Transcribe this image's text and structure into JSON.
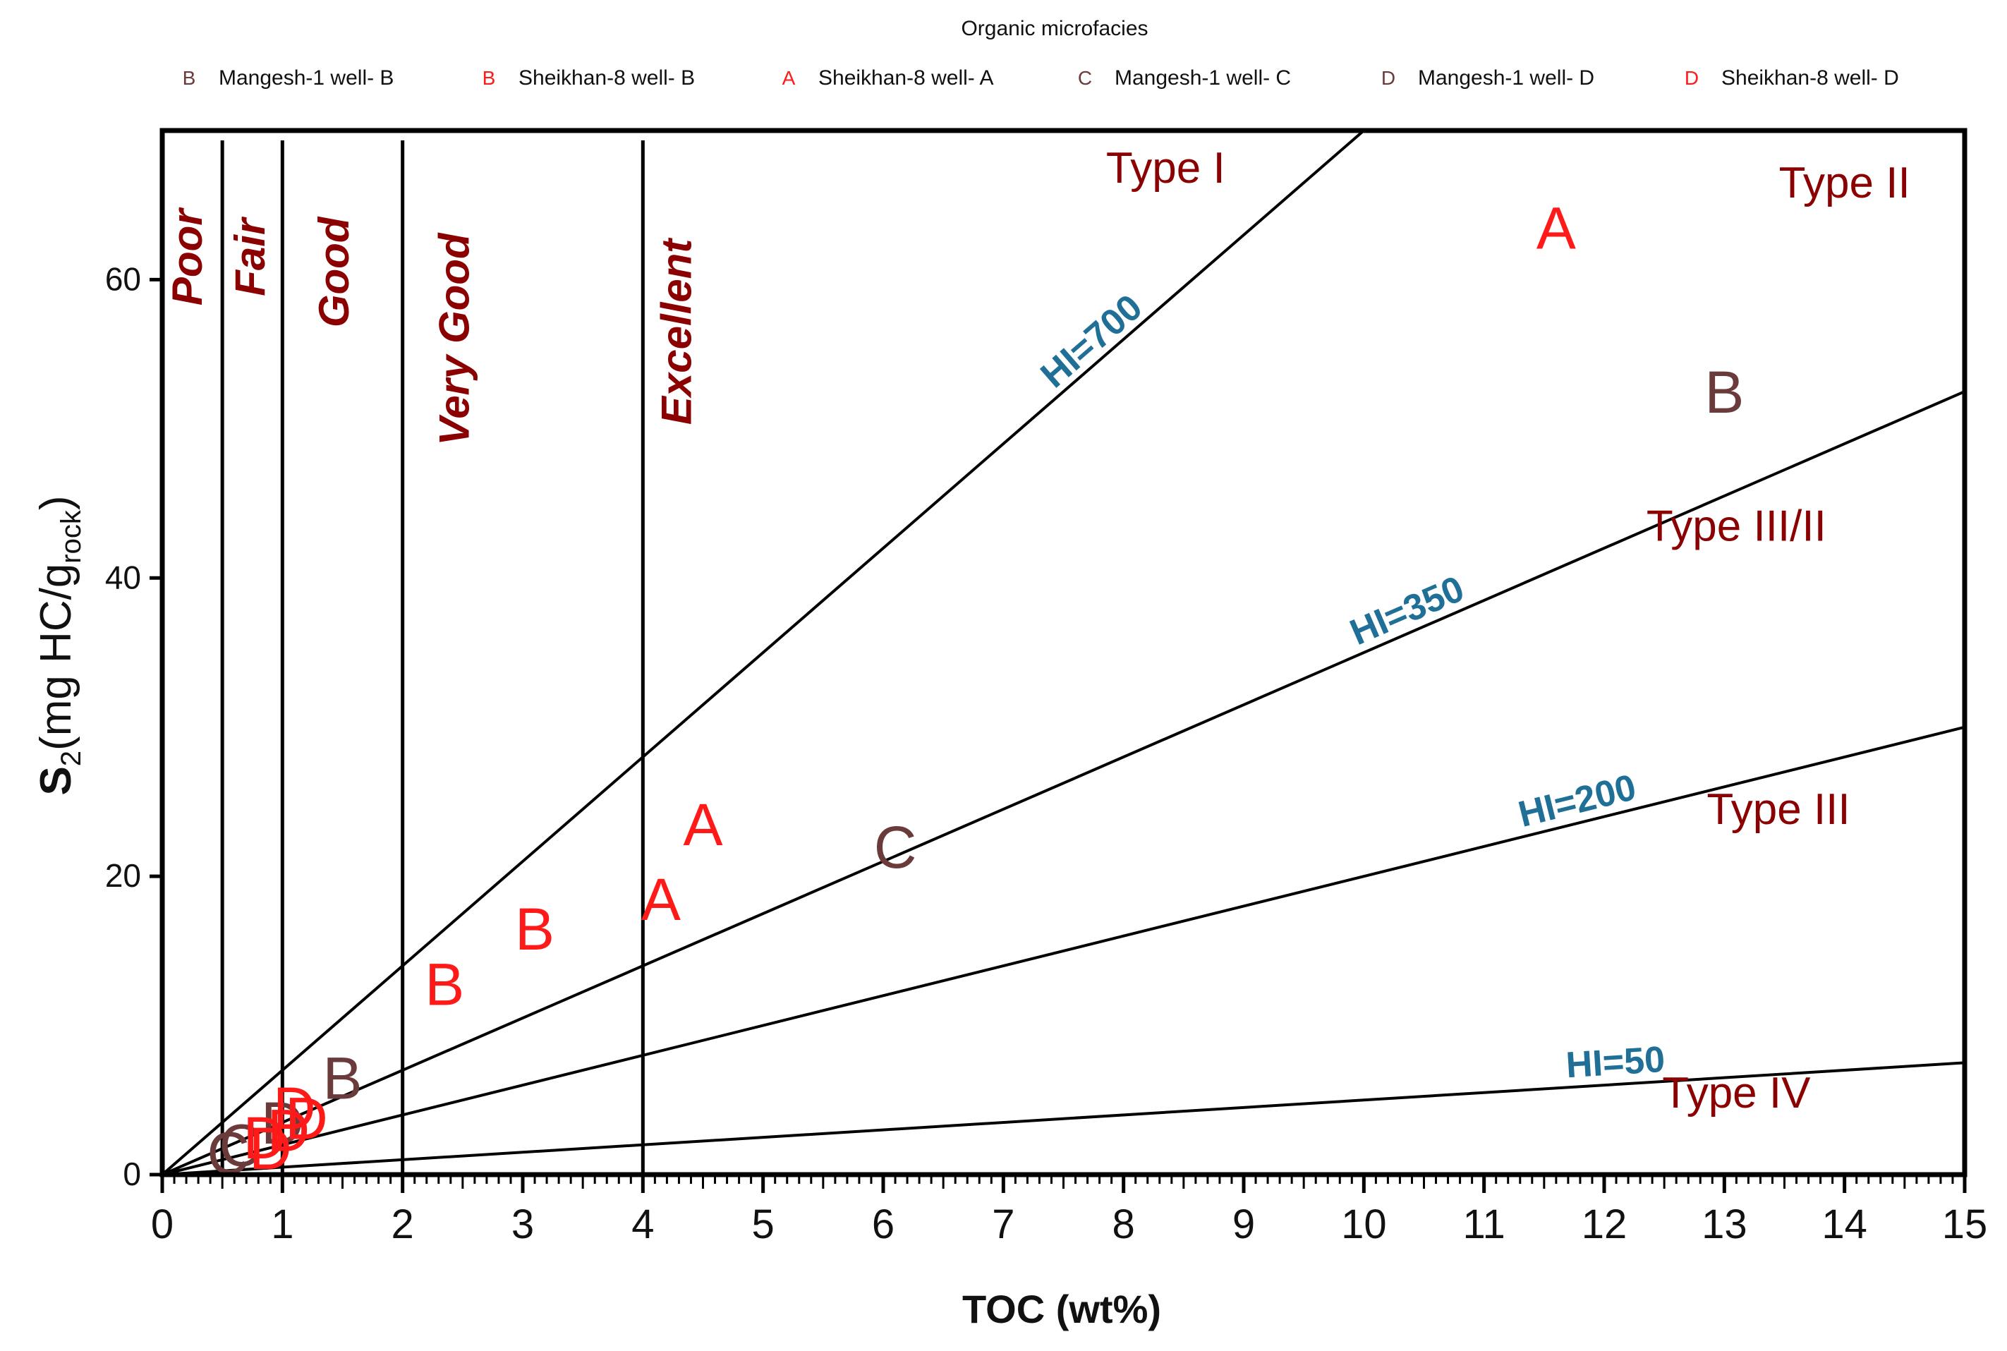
{
  "chart_data": {
    "type": "scatter",
    "title": "",
    "xlabel": "TOC (wt%)",
    "ylabel": {
      "main": "S",
      "sub": "2",
      "rest": "(mg HC/g",
      "rest_sub": "rock",
      "close": ")"
    },
    "xlim": [
      0,
      15
    ],
    "ylim": [
      0,
      70
    ],
    "xticks": [
      0,
      1,
      2,
      3,
      4,
      5,
      6,
      7,
      8,
      9,
      10,
      11,
      12,
      13,
      14,
      15
    ],
    "yticks": [
      0,
      20,
      40,
      60
    ],
    "legend": {
      "title": "Organic microfacies",
      "placement": "top",
      "entries": [
        {
          "symbol": "B",
          "label": "Mangesh-1 well- B",
          "color": "#6b3a3a"
        },
        {
          "symbol": "B",
          "label": "Sheikhan-8 well- B",
          "color": "#ff1a1a"
        },
        {
          "symbol": "A",
          "label": "Sheikhan-8 well- A",
          "color": "#ff1a1a"
        },
        {
          "symbol": "C",
          "label": "Mangesh-1 well- C",
          "color": "#6b3a3a"
        },
        {
          "symbol": "D",
          "label": "Mangesh-1 well- D",
          "color": "#6b3a3a"
        },
        {
          "symbol": "D",
          "label": "Sheikhan-8 well- D",
          "color": "#ff1a1a"
        }
      ]
    },
    "series": [
      {
        "name": "Mangesh-1 well- B",
        "symbol": "B",
        "color": "#6b3a3a",
        "points": [
          [
            13.0,
            52.5
          ],
          [
            1.5,
            6.5
          ]
        ]
      },
      {
        "name": "Sheikhan-8 well- B",
        "symbol": "B",
        "color": "#ff1a1a",
        "points": [
          [
            3.1,
            16.5
          ],
          [
            2.35,
            12.8
          ]
        ]
      },
      {
        "name": "Sheikhan-8 well- A",
        "symbol": "A",
        "color": "#ff1a1a",
        "points": [
          [
            11.6,
            63.5
          ],
          [
            4.5,
            23.5
          ],
          [
            4.15,
            18.5
          ]
        ]
      },
      {
        "name": "Mangesh-1 well- C",
        "symbol": "C",
        "color": "#6b3a3a",
        "points": [
          [
            6.1,
            22.0
          ],
          [
            0.55,
            1.5
          ],
          [
            0.65,
            2.0
          ]
        ]
      },
      {
        "name": "Mangesh-1 well- D",
        "symbol": "D",
        "color": "#6b3a3a",
        "points": [
          [
            1.0,
            3.5
          ]
        ]
      },
      {
        "name": "Sheikhan-8 well- D",
        "symbol": "D",
        "color": "#ff1a1a",
        "points": [
          [
            1.1,
            4.5
          ],
          [
            1.2,
            3.8
          ],
          [
            0.85,
            2.5
          ],
          [
            0.9,
            1.8
          ],
          [
            1.05,
            3.0
          ]
        ]
      }
    ],
    "hi_lines": [
      {
        "label": "HI=700",
        "hi": 700,
        "label_x": 7.8,
        "color": "#1f6f96"
      },
      {
        "label": "HI=350",
        "hi": 350,
        "label_x": 10.4,
        "color": "#1f6f96"
      },
      {
        "label": "HI=200",
        "hi": 200,
        "label_x": 11.8,
        "color": "#1f6f96"
      },
      {
        "label": "HI=50",
        "hi": 50,
        "label_x": 12.1,
        "color": "#1f6f96"
      }
    ],
    "toc_boundaries": [
      0.5,
      1,
      2,
      4
    ],
    "quality_zones": [
      {
        "label": "Poor",
        "x": 0.33,
        "y": 61.5
      },
      {
        "label": "Fair",
        "x": 0.85,
        "y": 61.5
      },
      {
        "label": "Good",
        "x": 1.55,
        "y": 60.5
      },
      {
        "label": "Very Good",
        "x": 2.55,
        "y": 56
      },
      {
        "label": "Excellent",
        "x": 4.4,
        "y": 56.5
      }
    ],
    "kerogen_types": [
      {
        "label": "Type I",
        "x": 8.35,
        "y": 66.5
      },
      {
        "label": "Type II",
        "x": 14.0,
        "y": 65.5
      },
      {
        "label": "Type III/II",
        "x": 13.1,
        "y": 42.5
      },
      {
        "label": "Type III",
        "x": 13.45,
        "y": 23.5
      },
      {
        "label": "Type IV",
        "x": 13.1,
        "y": 4.5
      }
    ]
  }
}
